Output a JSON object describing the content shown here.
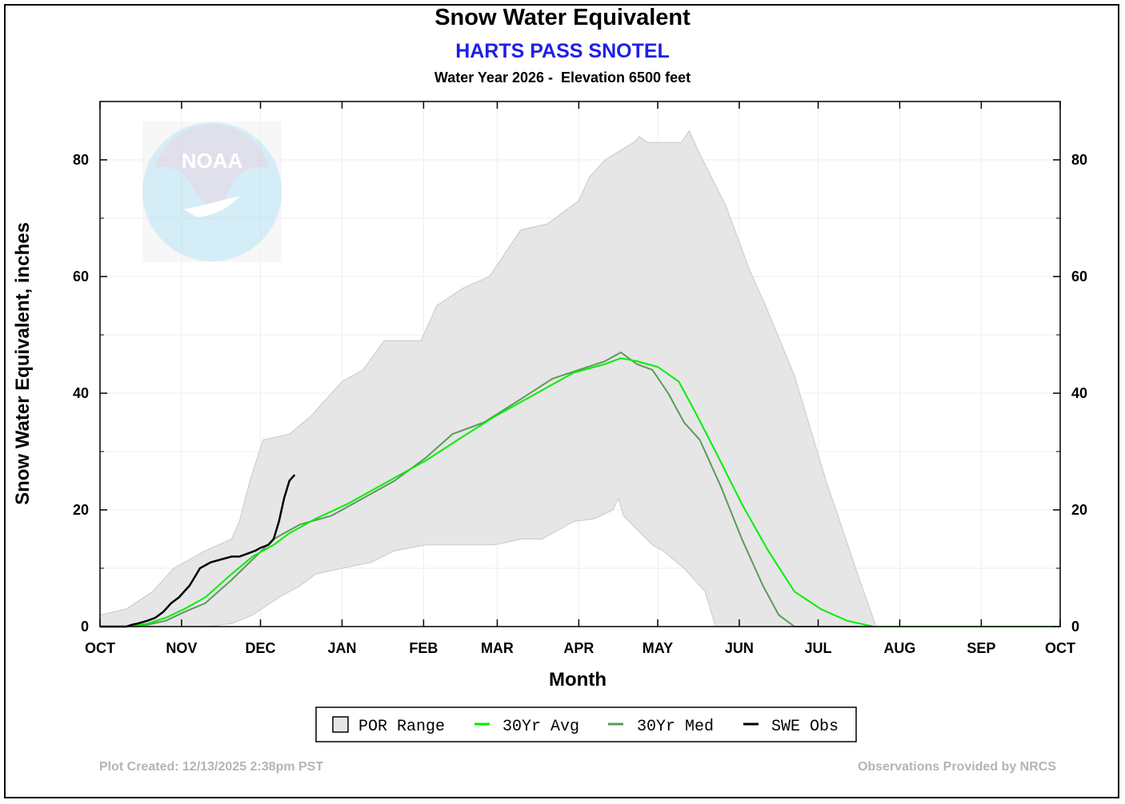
{
  "header": {
    "title": "Snow Water Equivalent",
    "station": "HARTS PASS SNOTEL",
    "subtitle": "Water Year 2026 -  Elevation 6500 feet"
  },
  "watermark": {
    "icon": "noaa-logo-icon",
    "text": "NOAA"
  },
  "footer": {
    "created": "Plot Created: 12/13/2025 2:38pm PST",
    "credit": "Observations Provided by NRCS"
  },
  "colors": {
    "por_fill": "#e6e6e6",
    "por_edge": "#c8c8c8",
    "avg": "#00ee00",
    "med": "#5a9a5a",
    "obs": "#000000",
    "grid": "#eeeeee"
  },
  "chart_data": {
    "type": "area",
    "title": "Snow Water Equivalent",
    "xlabel": "Month",
    "ylabel": "Snow Water Equivalent, inches",
    "x_unit": "days since Oct 1",
    "xlim": [
      0,
      365
    ],
    "ylim": [
      0,
      90
    ],
    "yticks": [
      0,
      20,
      40,
      60,
      80
    ],
    "month_ticks": [
      {
        "label": "OCT",
        "day": 0
      },
      {
        "label": "NOV",
        "day": 31
      },
      {
        "label": "DEC",
        "day": 61
      },
      {
        "label": "JAN",
        "day": 92
      },
      {
        "label": "FEB",
        "day": 123
      },
      {
        "label": "MAR",
        "day": 151
      },
      {
        "label": "APR",
        "day": 182
      },
      {
        "label": "MAY",
        "day": 212
      },
      {
        "label": "JUN",
        "day": 243
      },
      {
        "label": "JUL",
        "day": 273
      },
      {
        "label": "AUG",
        "day": 304
      },
      {
        "label": "SEP",
        "day": 335
      },
      {
        "label": "OCT",
        "day": 365
      }
    ],
    "grid": true,
    "legend_position": "bottom",
    "series": [
      {
        "name": "POR Range",
        "kind": "band",
        "upper": [
          [
            0,
            2
          ],
          [
            10,
            3
          ],
          [
            20,
            6
          ],
          [
            28,
            10
          ],
          [
            40,
            13
          ],
          [
            50,
            15
          ],
          [
            53,
            18
          ],
          [
            57,
            25
          ],
          [
            62,
            32
          ],
          [
            72,
            33
          ],
          [
            80,
            36
          ],
          [
            92,
            42
          ],
          [
            100,
            44
          ],
          [
            108,
            49
          ],
          [
            122,
            49
          ],
          [
            128,
            55
          ],
          [
            138,
            58
          ],
          [
            148,
            60
          ],
          [
            160,
            68
          ],
          [
            170,
            69
          ],
          [
            182,
            73
          ],
          [
            186,
            77
          ],
          [
            192,
            80
          ],
          [
            203,
            83
          ],
          [
            205,
            84
          ],
          [
            208,
            83
          ],
          [
            214,
            83
          ],
          [
            221,
            83
          ],
          [
            224,
            85
          ],
          [
            228,
            81
          ],
          [
            238,
            72
          ],
          [
            247,
            61
          ],
          [
            253,
            55
          ],
          [
            264,
            43
          ],
          [
            276,
            25
          ],
          [
            288,
            9
          ],
          [
            295,
            0
          ],
          [
            365,
            0
          ]
        ],
        "lower": [
          [
            0,
            0
          ],
          [
            30,
            0
          ],
          [
            40,
            0
          ],
          [
            50,
            0.5
          ],
          [
            58,
            2
          ],
          [
            68,
            5
          ],
          [
            76,
            7
          ],
          [
            82,
            9
          ],
          [
            92,
            10
          ],
          [
            103,
            11
          ],
          [
            112,
            13
          ],
          [
            124,
            14
          ],
          [
            136,
            14
          ],
          [
            150,
            14
          ],
          [
            160,
            15
          ],
          [
            168,
            15
          ],
          [
            180,
            18
          ],
          [
            188,
            18.5
          ],
          [
            195,
            20
          ],
          [
            197,
            22
          ],
          [
            199,
            19
          ],
          [
            210,
            14
          ],
          [
            214,
            13
          ],
          [
            222,
            10
          ],
          [
            230,
            6
          ],
          [
            234,
            0
          ],
          [
            240,
            0
          ],
          [
            365,
            0
          ]
        ]
      },
      {
        "name": "30Yr Avg",
        "kind": "line",
        "points": [
          [
            0,
            0
          ],
          [
            10,
            0
          ],
          [
            18,
            0.5
          ],
          [
            25,
            1.5
          ],
          [
            32,
            3
          ],
          [
            40,
            5
          ],
          [
            50,
            9
          ],
          [
            58,
            12
          ],
          [
            66,
            14
          ],
          [
            72,
            16
          ],
          [
            82,
            18.5
          ],
          [
            94,
            21
          ],
          [
            108,
            24.5
          ],
          [
            124,
            28.5
          ],
          [
            136,
            32
          ],
          [
            150,
            36
          ],
          [
            166,
            40
          ],
          [
            180,
            43.5
          ],
          [
            192,
            45
          ],
          [
            198,
            46
          ],
          [
            204,
            45.5
          ],
          [
            212,
            44.5
          ],
          [
            220,
            42
          ],
          [
            226,
            37
          ],
          [
            234,
            30
          ],
          [
            244,
            21
          ],
          [
            254,
            13
          ],
          [
            264,
            6
          ],
          [
            274,
            3
          ],
          [
            284,
            1
          ],
          [
            294,
            0
          ],
          [
            365,
            0
          ]
        ]
      },
      {
        "name": "30Yr Med",
        "kind": "line",
        "points": [
          [
            0,
            0
          ],
          [
            10,
            0
          ],
          [
            18,
            0.3
          ],
          [
            25,
            1
          ],
          [
            32,
            2.5
          ],
          [
            40,
            4
          ],
          [
            50,
            8
          ],
          [
            58,
            11.5
          ],
          [
            66,
            15
          ],
          [
            76,
            17.5
          ],
          [
            88,
            19
          ],
          [
            100,
            22
          ],
          [
            112,
            25
          ],
          [
            124,
            29
          ],
          [
            134,
            33
          ],
          [
            146,
            35
          ],
          [
            160,
            39
          ],
          [
            172,
            42.5
          ],
          [
            182,
            44
          ],
          [
            192,
            45.5
          ],
          [
            198,
            47
          ],
          [
            204,
            45
          ],
          [
            210,
            44
          ],
          [
            216,
            40
          ],
          [
            222,
            35
          ],
          [
            228,
            32
          ],
          [
            236,
            24
          ],
          [
            244,
            15
          ],
          [
            252,
            7
          ],
          [
            258,
            2
          ],
          [
            264,
            0
          ],
          [
            365,
            0
          ]
        ]
      },
      {
        "name": "SWE Obs",
        "kind": "line",
        "points": [
          [
            0,
            0
          ],
          [
            10,
            0
          ],
          [
            12,
            0.3
          ],
          [
            14,
            0.5
          ],
          [
            18,
            1
          ],
          [
            21,
            1.5
          ],
          [
            24,
            2.5
          ],
          [
            27,
            4
          ],
          [
            30,
            5
          ],
          [
            33,
            6.5
          ],
          [
            34,
            7
          ],
          [
            36,
            8.5
          ],
          [
            38,
            10
          ],
          [
            40,
            10.5
          ],
          [
            42,
            11
          ],
          [
            46,
            11.5
          ],
          [
            50,
            12
          ],
          [
            53,
            12
          ],
          [
            56,
            12.5
          ],
          [
            59,
            13
          ],
          [
            61,
            13.5
          ],
          [
            64,
            14
          ],
          [
            66,
            15
          ],
          [
            68,
            18
          ],
          [
            70,
            22
          ],
          [
            72,
            25
          ],
          [
            74,
            26
          ]
        ]
      }
    ]
  }
}
